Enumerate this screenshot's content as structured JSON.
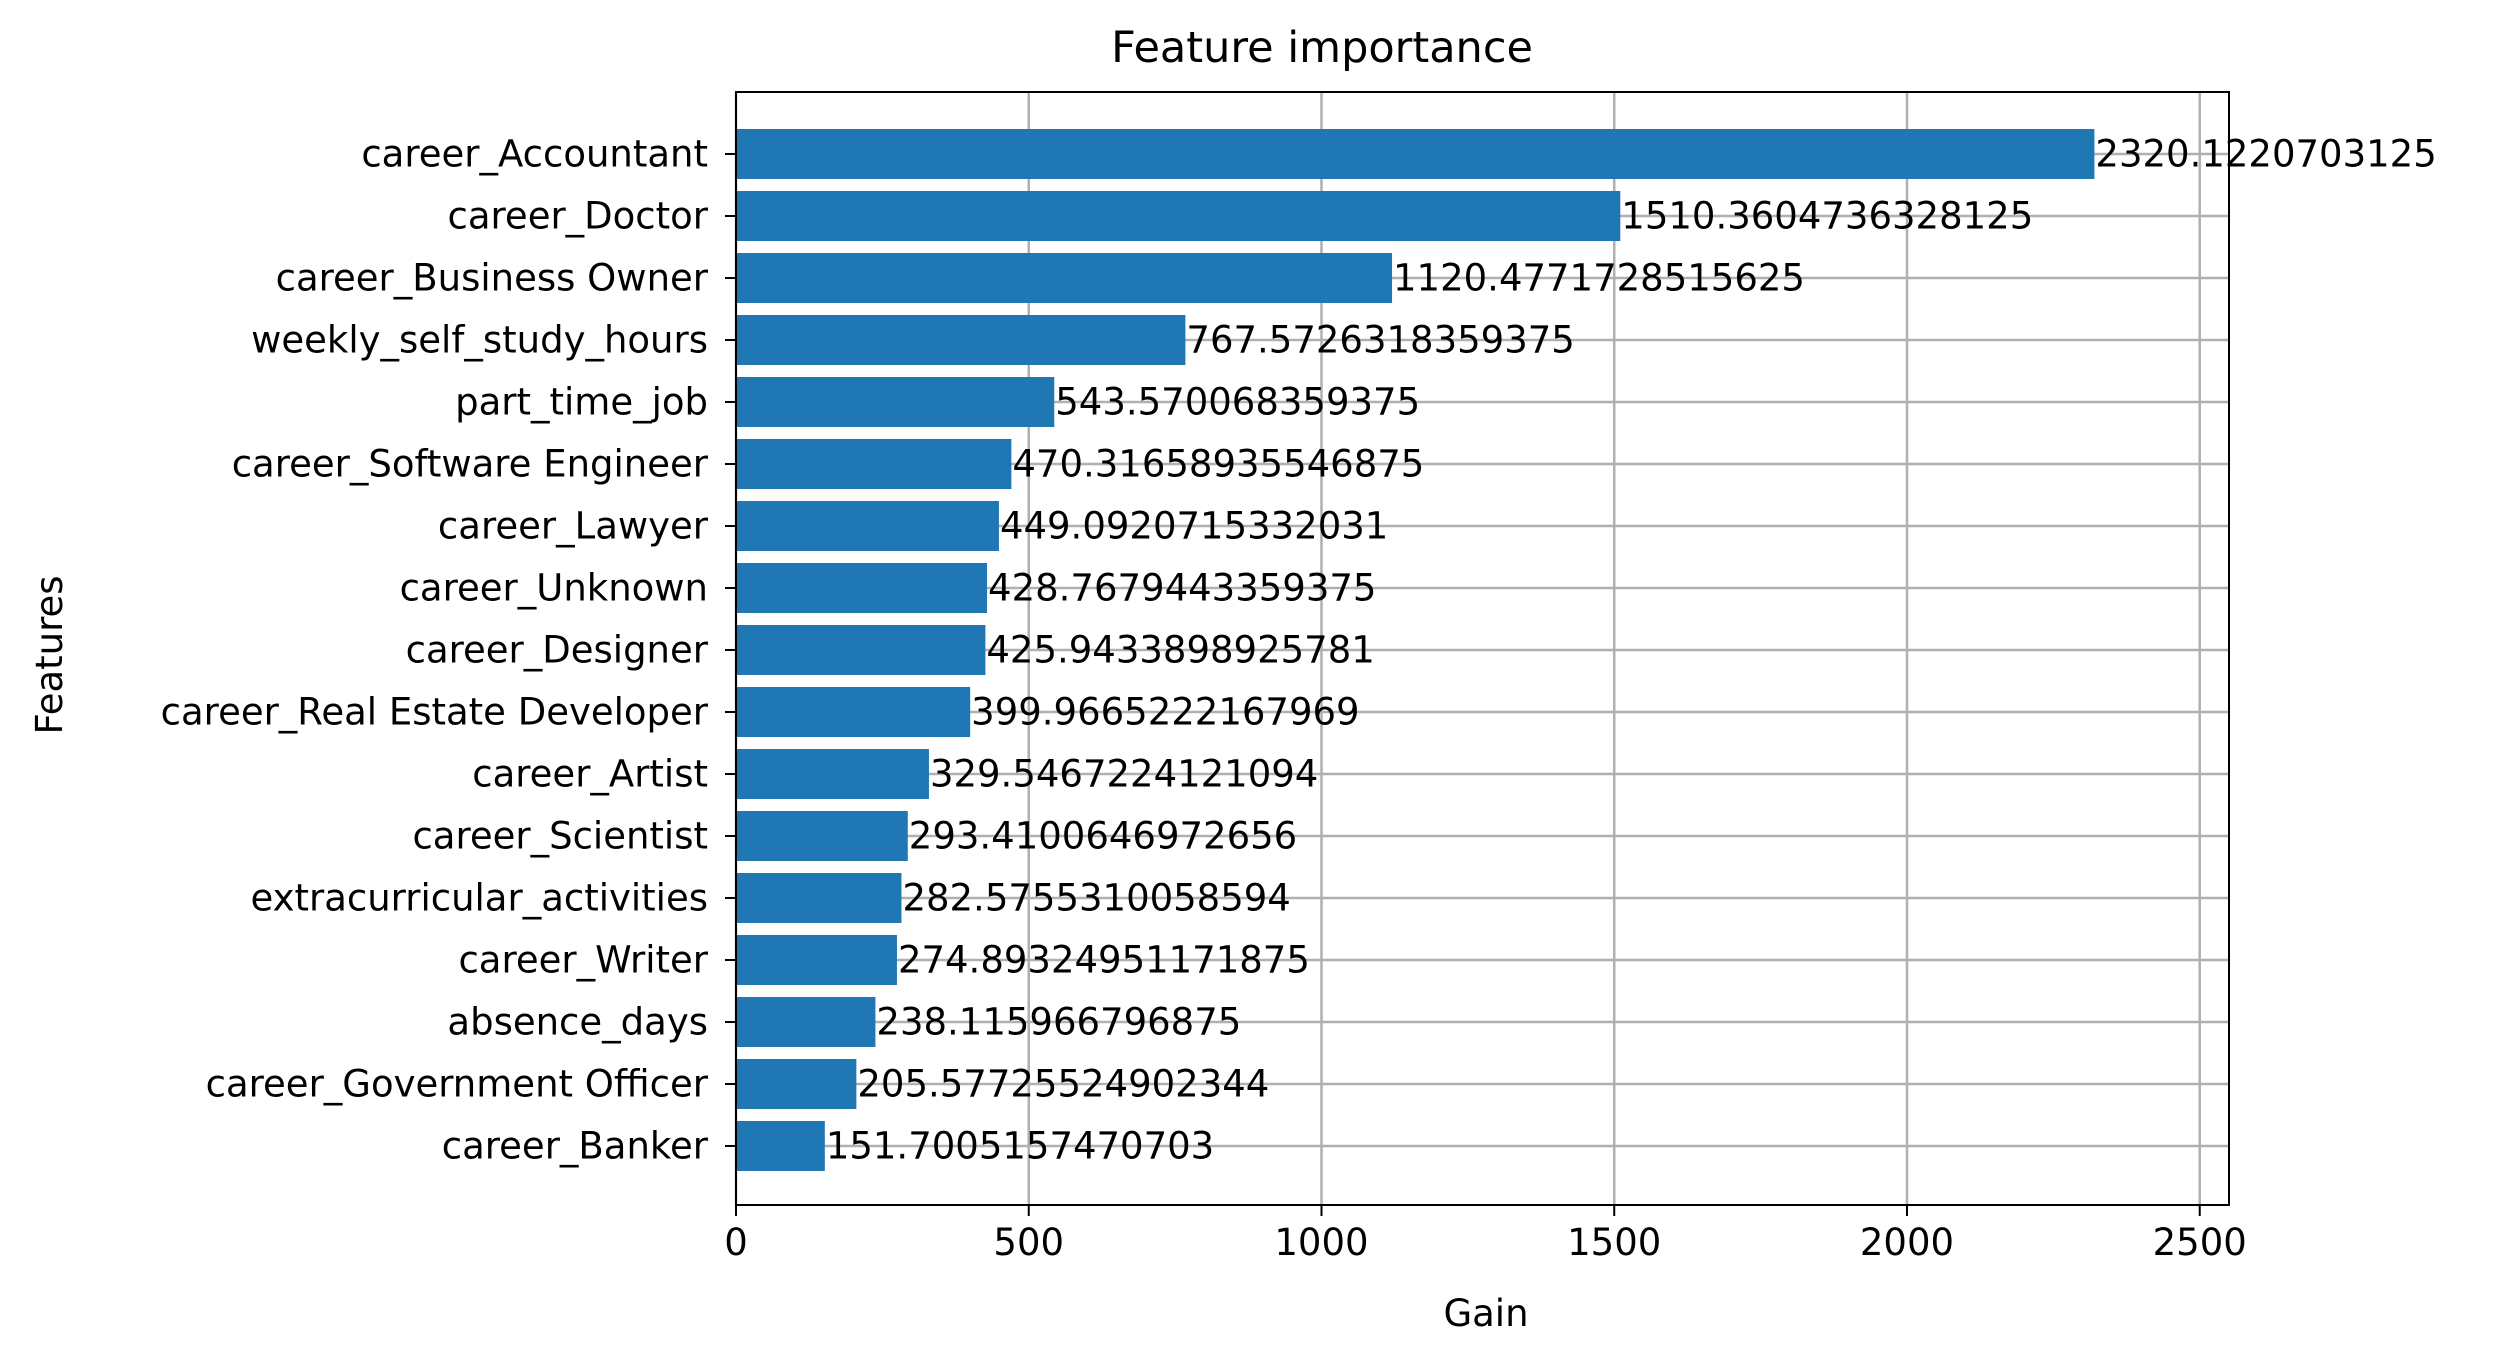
{
  "chart_data": {
    "type": "bar",
    "orientation": "horizontal",
    "title": "Feature importance",
    "xlabel": "Gain",
    "ylabel": "Features",
    "xlim": [
      0,
      2550
    ],
    "xticks": [
      0,
      500,
      1000,
      1500,
      2000,
      2500
    ],
    "grid": true,
    "bar_color": "#1f77b4",
    "categories": [
      "career_Accountant",
      "career_Doctor",
      "career_Business Owner",
      "weekly_self_study_hours",
      "part_time_job",
      "career_Software Engineer",
      "career_Lawyer",
      "career_Unknown",
      "career_Designer",
      "career_Real Estate Developer",
      "career_Artist",
      "career_Scientist",
      "extracurricular_activities",
      "career_Writer",
      "absence_days",
      "career_Government Officer",
      "career_Banker"
    ],
    "values": [
      2320.1220703125,
      1510.3604736328125,
      1120.4771728515625,
      767.5726318359375,
      543.570068359375,
      470.31658935546875,
      449.0920715332031,
      428.7679443359375,
      425.9433898925781,
      399.9665222167969,
      329.5467224121094,
      293.4100646972656,
      282.5755310058594,
      274.89324951171875,
      238.115966796875,
      205.57725524902344,
      151.7005157470703
    ],
    "value_labels": [
      "2320.1220703125",
      "1510.3604736328125",
      "1120.4771728515625",
      "767.5726318359375",
      "543.570068359375",
      "470.31658935546875",
      "449.0920715332031",
      "428.7679443359375",
      "425.9433898925781",
      "399.9665222167969",
      "329.5467224121094",
      "293.4100646972656",
      "282.5755310058594",
      "274.89324951171875",
      "238.115966796875",
      "205.57725524902344",
      "151.7005157470703"
    ]
  }
}
